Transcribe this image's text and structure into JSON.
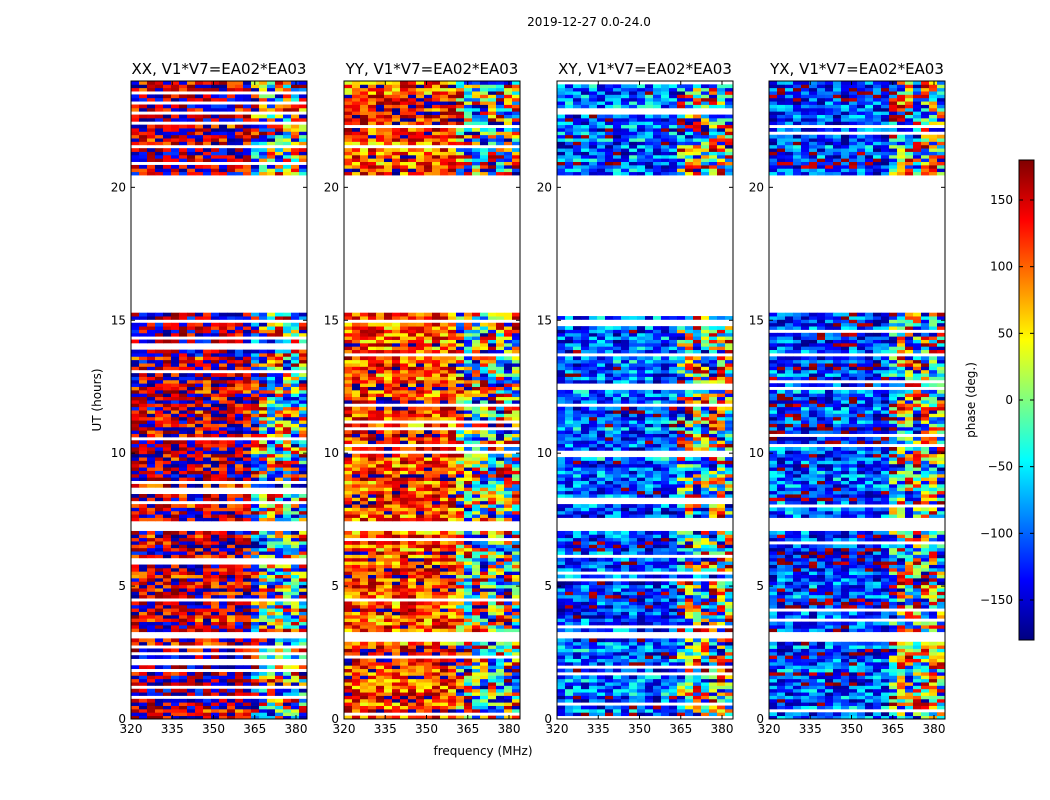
{
  "chart_data": {
    "type": "heatmap",
    "suptitle": "2019-12-27 0.0-24.0",
    "xlabel": "frequency (MHz)",
    "ylabel": "UT (hours)",
    "colorbar": {
      "label": "phase (deg.)",
      "range": [
        -180,
        180
      ],
      "ticks": [
        -150,
        -100,
        -50,
        0,
        50,
        100,
        150
      ],
      "tick_labels": [
        "−150",
        "−100",
        "−50",
        "0",
        "50",
        "100",
        "150"
      ],
      "colormap": "jet",
      "colors": [
        "#00007f",
        "#0000ff",
        "#007fff",
        "#00ffff",
        "#7fff7f",
        "#ffff00",
        "#ff7f00",
        "#ff0000",
        "#7f0000"
      ]
    },
    "xlim": [
      320,
      384
    ],
    "ylim": [
      0,
      24
    ],
    "xticks": [
      320,
      335,
      350,
      365,
      380
    ],
    "yticks": [
      0,
      5,
      10,
      15,
      20
    ],
    "no_data_ut_ranges": [
      [
        20.5,
        15.25
      ],
      [
        7.5,
        7.1
      ],
      [
        3.25,
        3.05
      ]
    ],
    "panels": [
      {
        "title": "XX, V1*V7=EA02*EA03",
        "mean_phase_low_freq": 165,
        "mean_phase_high_freq": -170,
        "transition_freq": 364
      },
      {
        "title": "YY, V1*V7=EA02*EA03",
        "mean_phase_low_freq": 120,
        "mean_phase_high_freq": 100,
        "transition_freq": 361
      },
      {
        "title": "XY, V1*V7=EA02*EA03",
        "mean_phase_low_freq": -110,
        "mean_phase_high_freq": -90,
        "transition_freq": 364
      },
      {
        "title": "YX, V1*V7=EA02*EA03",
        "mean_phase_low_freq": -120,
        "mean_phase_high_freq": -90,
        "transition_freq": 364
      }
    ]
  }
}
